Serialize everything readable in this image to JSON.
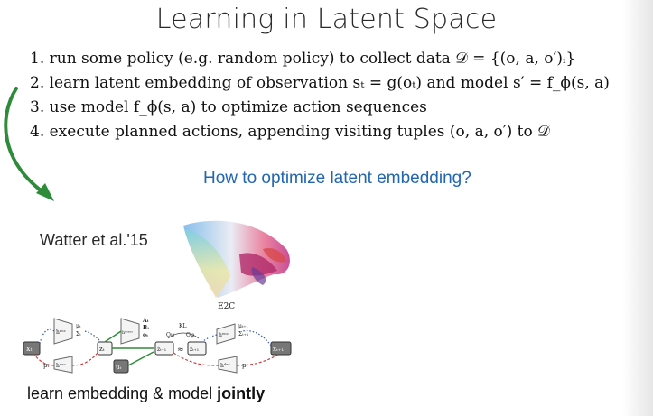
{
  "slide": {
    "title": "Learning in Latent Space",
    "steps": [
      "1. run some policy (e.g. random policy) to collect data 𝒟 = {(o, a, o′)ᵢ}",
      "2. learn latent embedding of observation sₜ = g(oₜ) and model s′ = f_ϕ(s, a)",
      "3. use model f_ϕ(s, a) to optimize action sequences",
      "4. execute planned actions, appending visiting tuples (o, a, o′) to 𝒟"
    ],
    "question": "How to optimize latent embedding?",
    "citation": "Watter et al.'15",
    "embedding_label": "E2C",
    "footer_prefix": "learn embedding & model ",
    "footer_bold": "jointly",
    "diagram_labels": {
      "x_t": "xₜ",
      "z_t": "zₜ",
      "u_t": "uₜ",
      "p_t": "pₜ",
      "z_hat": "ẑₜ₊₁",
      "z_next": "zₜ₊₁",
      "x_next": "xₜ₊₁",
      "p_next": "pₜ",
      "kl": "KL",
      "approx": "≈",
      "mu_t": "μₜ",
      "sigma_t": "Σₜ",
      "mu_next": "μₜ₊₁",
      "sigma_next": "Σₜ₊₁",
      "h_enc": "hᵉⁿᶜ",
      "h_dec": "hᵈᵉᶜ",
      "h_trans": "hᵗʳᵃⁿˢ",
      "A_t": "Aₜ",
      "B_t": "Bₜ",
      "o_t": "oₜ",
      "q_phi": "Qφ",
      "q_psi": "Qψ"
    },
    "colors": {
      "question": "#2266b0",
      "arrow": "#2e8b3a",
      "dashed_arrow": "#d23a3a",
      "dotted_arrow": "#3a5aa8"
    }
  }
}
